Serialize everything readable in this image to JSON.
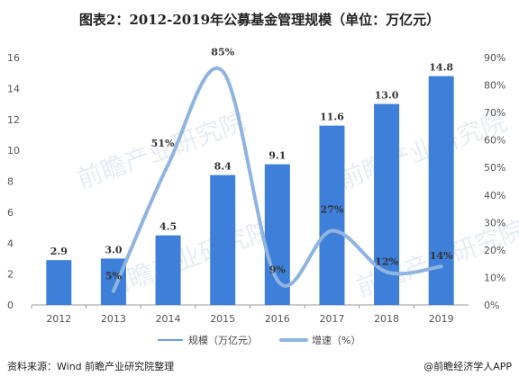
{
  "title": "图表2：2012-2019年公募基金管理规模（单位：万亿元）",
  "source": "资料来源：Wind 前瞻产业研究院整理",
  "brand": "@前瞻经济学人APP",
  "watermark": "前瞻产业研究院",
  "colors": {
    "bar": "#3d7fd9",
    "line": "#8fb4e0",
    "axis": "#999999"
  },
  "chart_data": {
    "type": "bar",
    "categories": [
      "2012",
      "2013",
      "2014",
      "2015",
      "2016",
      "2017",
      "2018",
      "2019"
    ],
    "series": [
      {
        "name": "规模（万亿元）",
        "type": "bar",
        "axis": "left",
        "values": [
          2.9,
          3.0,
          4.5,
          8.4,
          9.1,
          11.6,
          13.0,
          14.8
        ],
        "labels": [
          "2.9",
          "3.0",
          "4.5",
          "8.4",
          "9.1",
          "11.6",
          "13.0",
          "14.8"
        ]
      },
      {
        "name": "增速（%）",
        "type": "line",
        "axis": "right",
        "values": [
          null,
          5,
          51,
          85,
          9,
          27,
          12,
          14
        ],
        "labels": [
          "",
          "5%",
          "51%",
          "85%",
          "9%",
          "27%",
          "12%",
          "14%"
        ]
      }
    ],
    "ylim_left": [
      0,
      16
    ],
    "yticks_left": [
      "0",
      "2",
      "4",
      "6",
      "8",
      "10",
      "12",
      "14",
      "16"
    ],
    "ylim_right": [
      0,
      90
    ],
    "yticks_right": [
      "0%",
      "10%",
      "20%",
      "30%",
      "40%",
      "50%",
      "60%",
      "70%",
      "80%",
      "90%"
    ],
    "legend_position": "bottom",
    "grid": false
  }
}
